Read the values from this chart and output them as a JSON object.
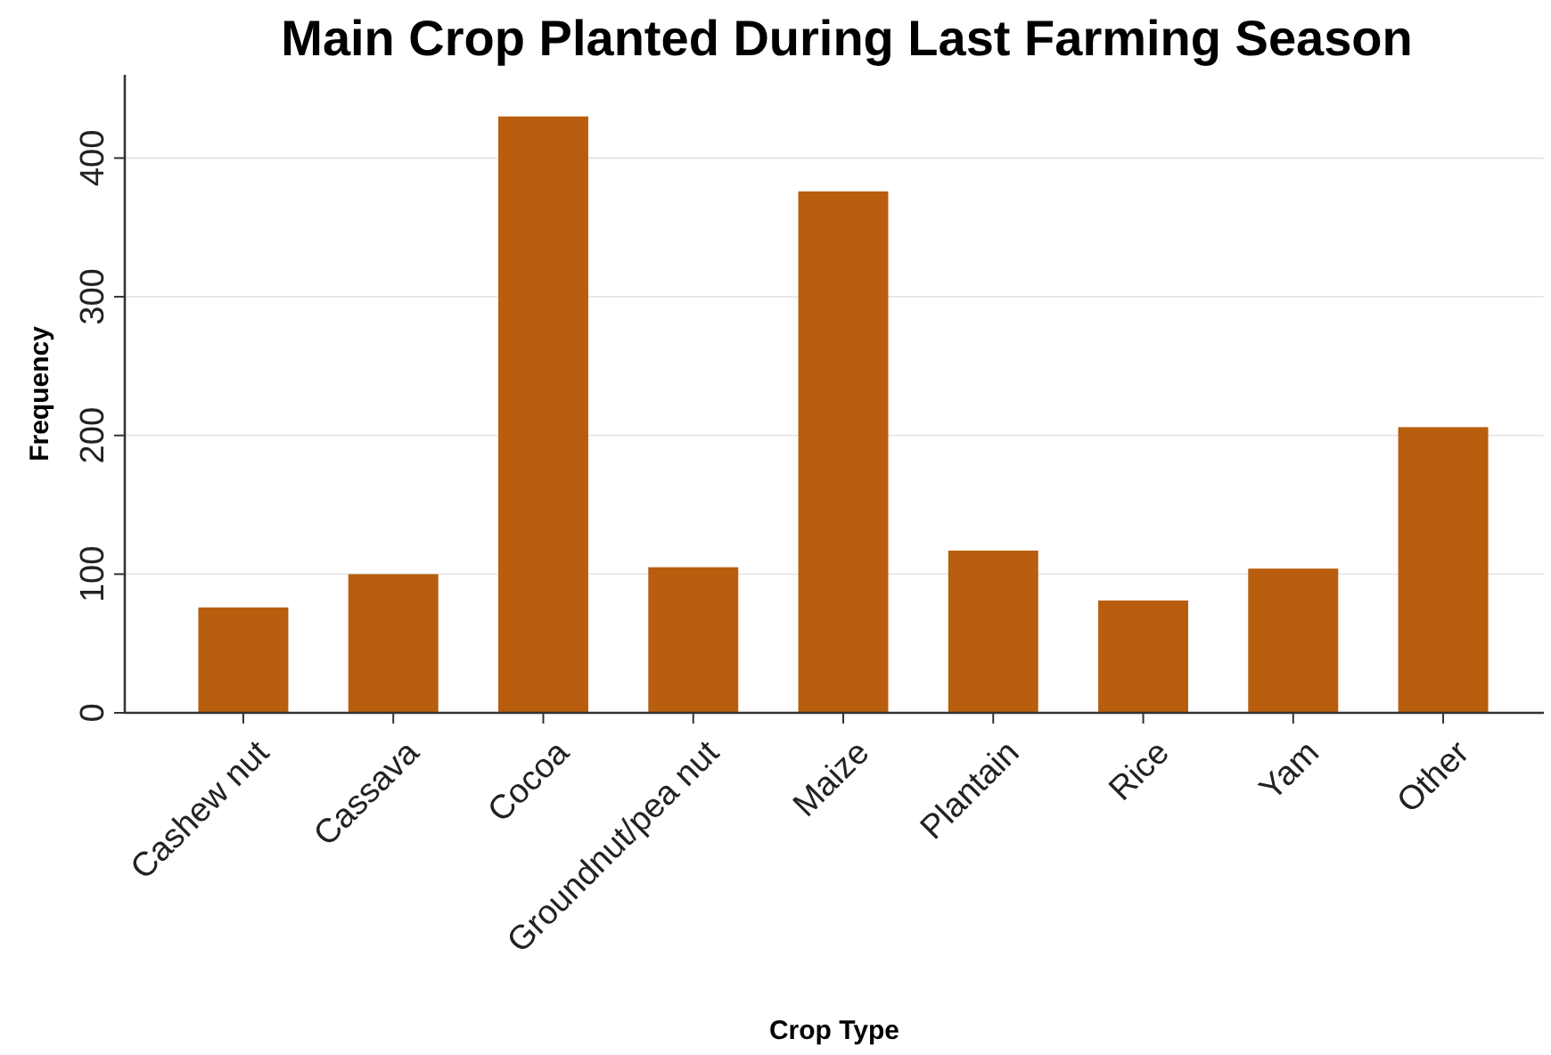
{
  "chart_data": {
    "type": "bar",
    "title": "Main Crop Planted During Last Farming Season",
    "xlabel": "Crop Type",
    "ylabel": "Frequency",
    "categories": [
      "Cashew nut",
      "Cassava",
      "Cocoa",
      "Groundnut/pea nut",
      "Maize",
      "Plantain",
      "Rice",
      "Yam",
      "Other"
    ],
    "values": [
      76,
      100,
      430,
      105,
      376,
      117,
      81,
      104,
      206
    ],
    "color": "#b85e0e",
    "ylim": [
      0,
      460
    ],
    "yticks": [
      0,
      100,
      200,
      300,
      400
    ],
    "grid": "y"
  }
}
